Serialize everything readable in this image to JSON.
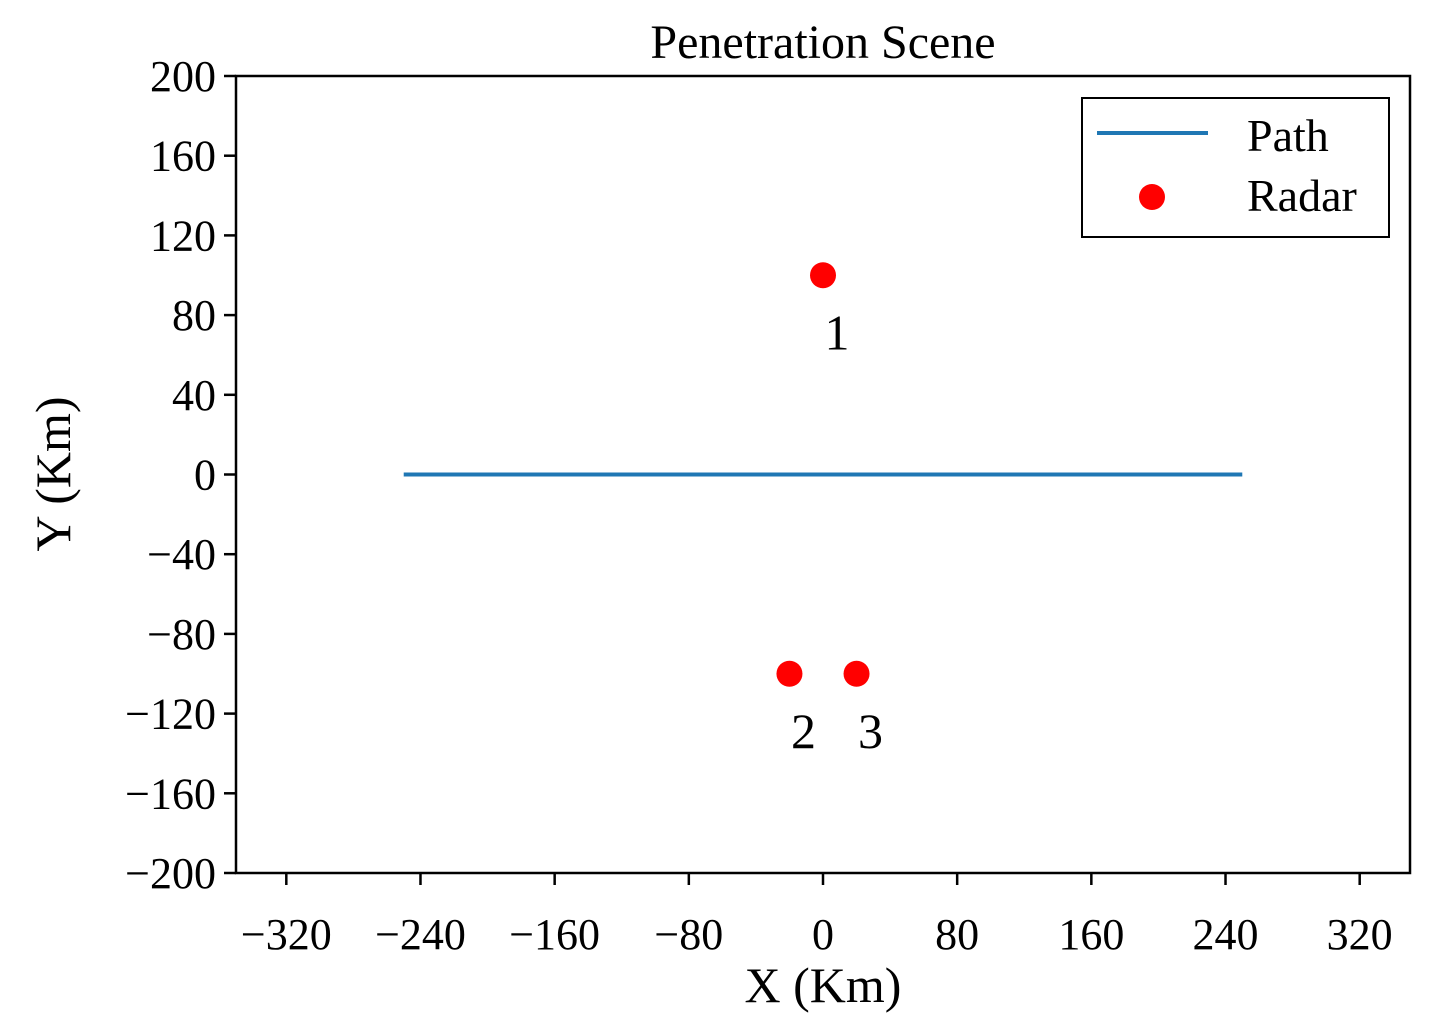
{
  "chart_data": {
    "type": "scatter",
    "title": "Penetration Scene",
    "xlabel": "X (Km)",
    "ylabel": "Y (Km)",
    "xlim": [
      -350,
      350
    ],
    "ylim": [
      -200,
      200
    ],
    "xticks": [
      -320,
      -240,
      -160,
      -80,
      0,
      80,
      160,
      240,
      320
    ],
    "yticks": [
      200,
      160,
      120,
      80,
      40,
      0,
      -40,
      -80,
      -120,
      -160,
      -200
    ],
    "grid": false,
    "legend_position": "top-right",
    "series": [
      {
        "name": "Path",
        "kind": "line",
        "color": "#1f77b4",
        "x": [
          -250,
          250
        ],
        "y": [
          0,
          0
        ]
      },
      {
        "name": "Radar",
        "kind": "scatter",
        "color": "#ff0000",
        "points": [
          {
            "x": 0,
            "y": 100,
            "label": "1"
          },
          {
            "x": -20,
            "y": -100,
            "label": "2"
          },
          {
            "x": 20,
            "y": -100,
            "label": "3"
          }
        ]
      }
    ]
  }
}
